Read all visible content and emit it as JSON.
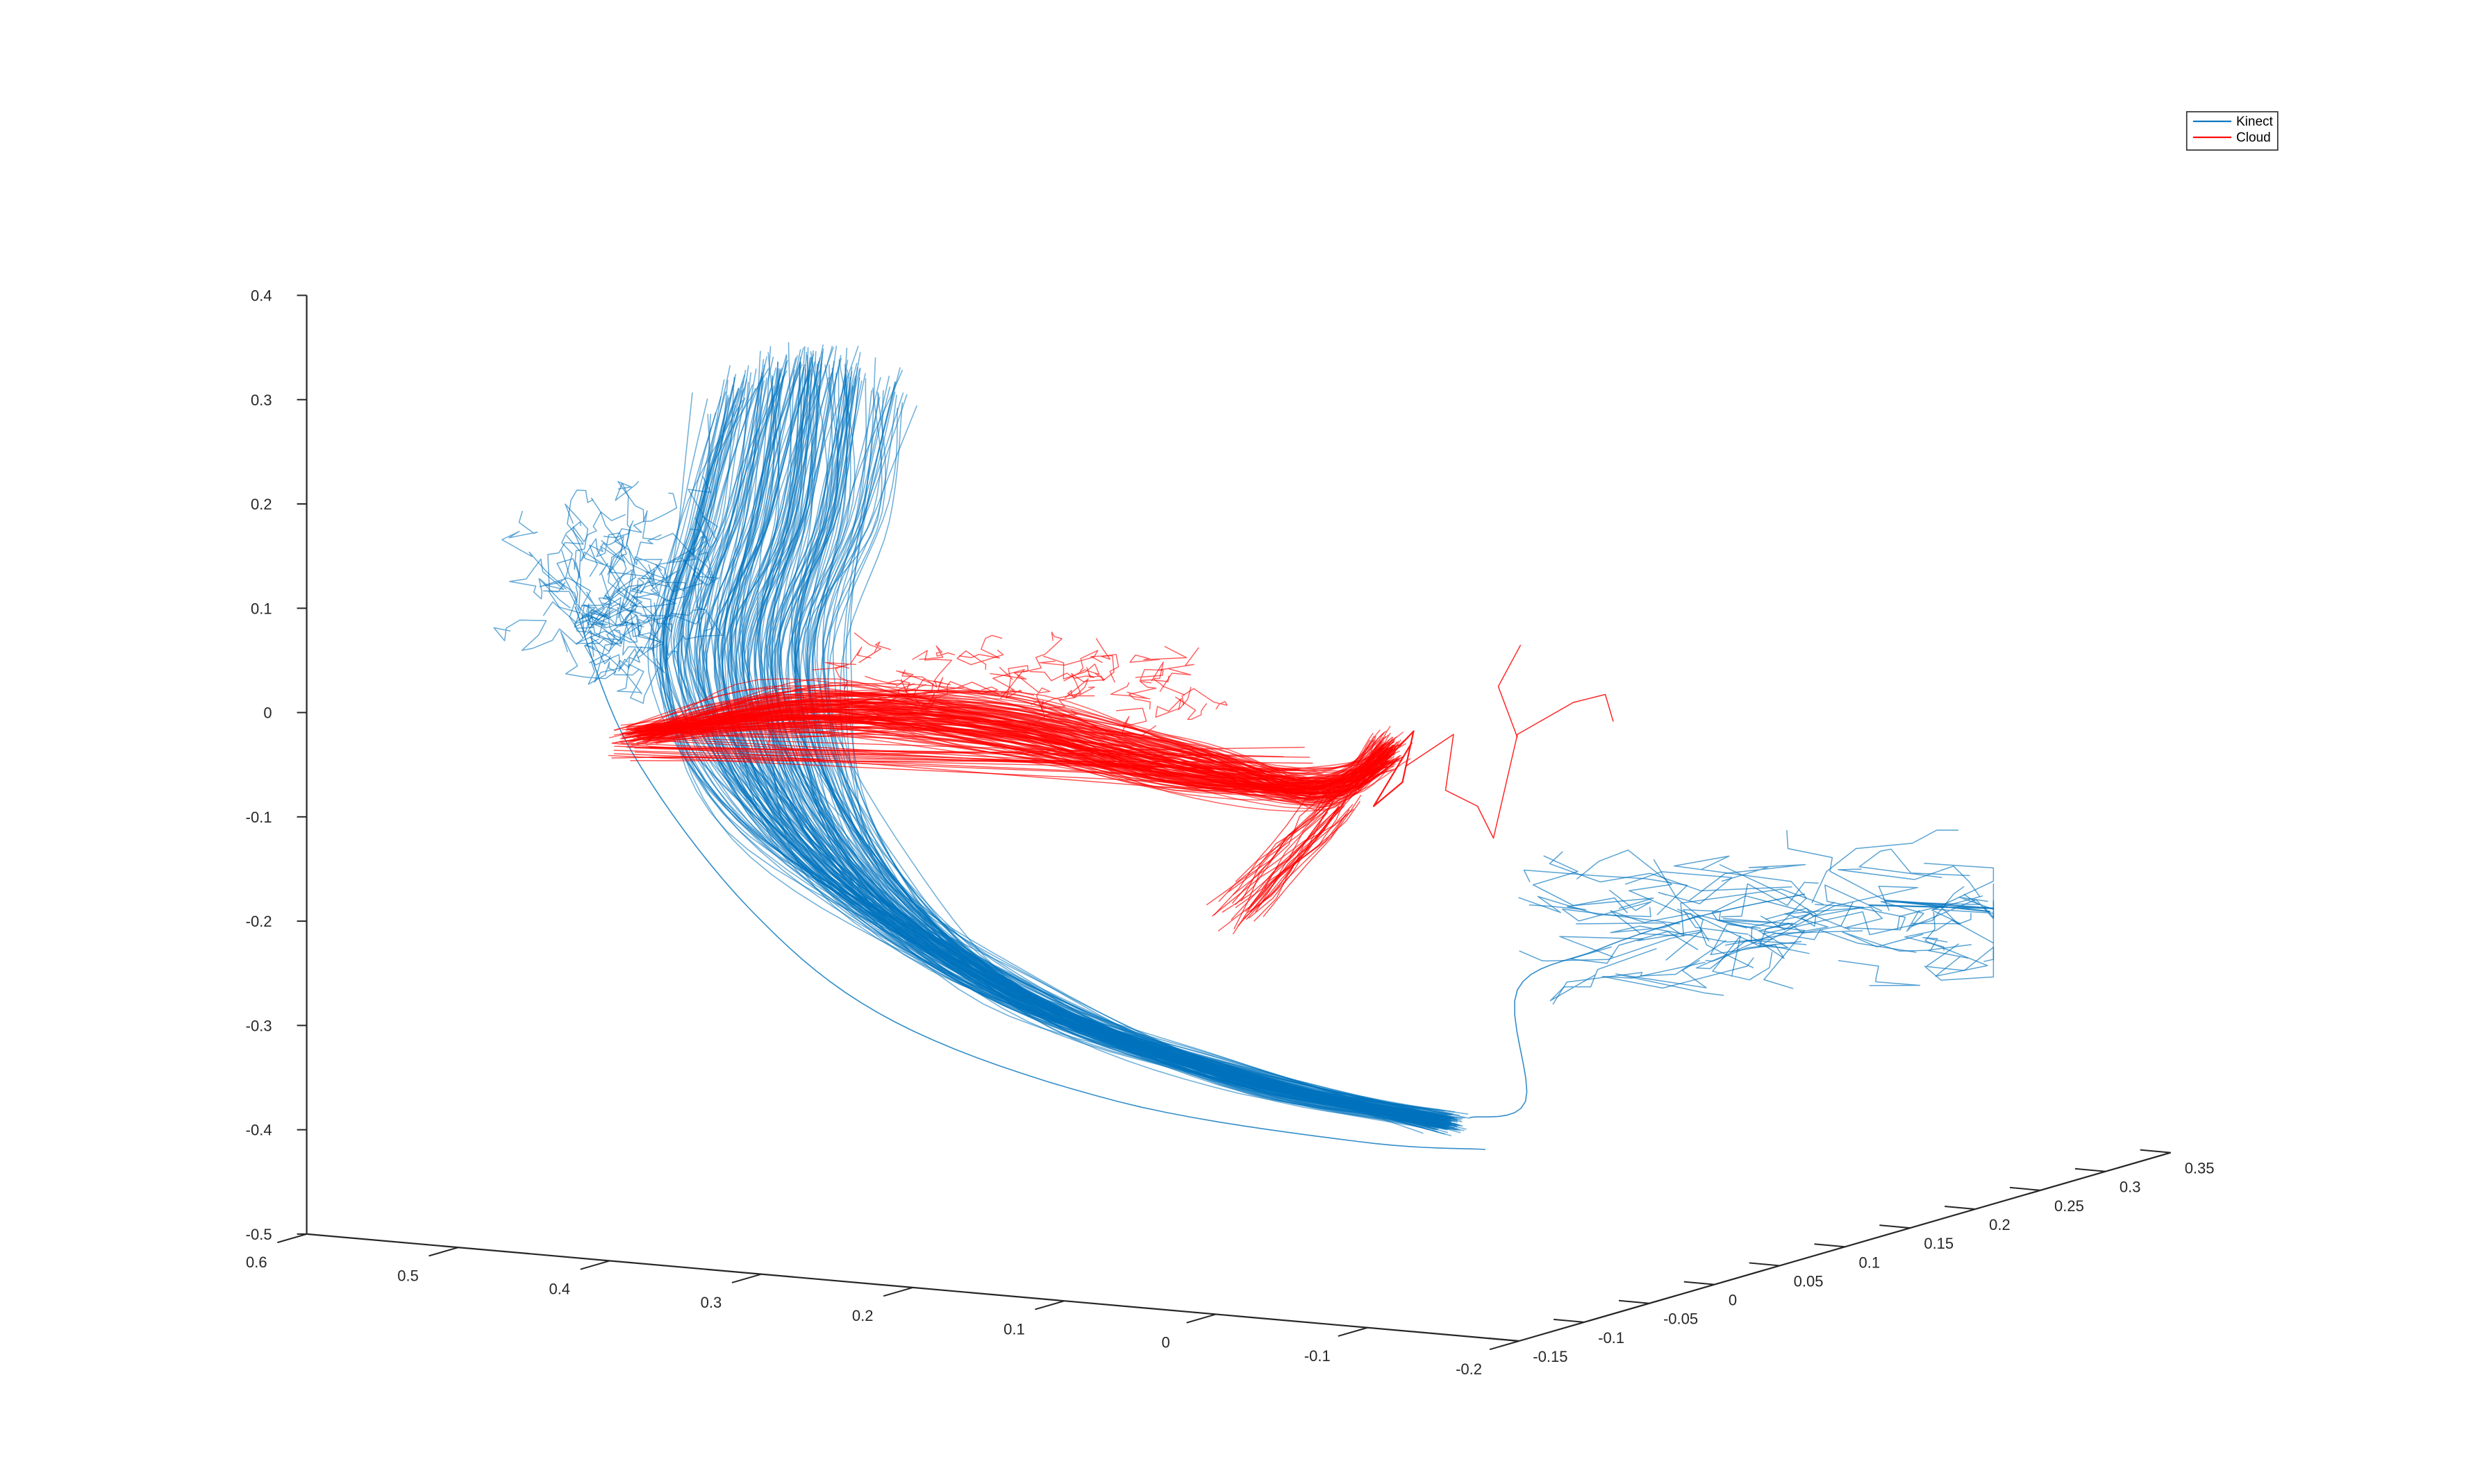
{
  "chart_data": {
    "type": "line",
    "projection": "3d",
    "title": "",
    "xlabel": "",
    "ylabel": "",
    "zlabel": "",
    "grid": false,
    "legend_placement": "top-right",
    "xlim": [
      -0.2,
      0.6
    ],
    "ylim": [
      -0.15,
      0.35
    ],
    "zlim": [
      -0.5,
      0.4
    ],
    "xticks": [
      "0.6",
      "0.5",
      "0.4",
      "0.3",
      "0.2",
      "0.1",
      "0",
      "-0.1",
      "-0.2"
    ],
    "yticks": [
      "-0.15",
      "-0.1",
      "-0.05",
      "0",
      "0.05",
      "0.1",
      "0.15",
      "0.2",
      "0.25",
      "0.3",
      "0.35"
    ],
    "zticks": [
      "0.4",
      "0.3",
      "0.2",
      "0.1",
      "0",
      "-0.1",
      "-0.2",
      "-0.3",
      "-0.4",
      "-0.5"
    ],
    "series": [
      {
        "name": "Kinect",
        "color": "#0072BD",
        "description_points": [
          {
            "x": 0.48,
            "y": -0.1,
            "z": 0.3
          },
          {
            "x": 0.5,
            "y": -0.12,
            "z": 0.2
          },
          {
            "x": 0.52,
            "y": -0.13,
            "z": 0.08
          },
          {
            "x": 0.48,
            "y": -0.12,
            "z": -0.05
          },
          {
            "x": 0.38,
            "y": -0.1,
            "z": -0.2
          },
          {
            "x": 0.25,
            "y": -0.07,
            "z": -0.32
          },
          {
            "x": 0.1,
            "y": -0.04,
            "z": -0.4
          },
          {
            "x": 0.0,
            "y": -0.02,
            "z": -0.42
          },
          {
            "x": -0.05,
            "y": 0.02,
            "z": -0.3
          },
          {
            "x": -0.1,
            "y": 0.08,
            "z": -0.2
          },
          {
            "x": -0.12,
            "y": 0.15,
            "z": -0.18
          }
        ]
      },
      {
        "name": "Cloud",
        "color": "#FF0000",
        "description_points": [
          {
            "x": 0.45,
            "y": -0.12,
            "z": -0.02
          },
          {
            "x": 0.35,
            "y": -0.1,
            "z": 0.0
          },
          {
            "x": 0.2,
            "y": -0.07,
            "z": -0.05
          },
          {
            "x": 0.12,
            "y": -0.05,
            "z": -0.1
          },
          {
            "x": 0.1,
            "y": -0.05,
            "z": -0.18
          },
          {
            "x": 0.08,
            "y": -0.03,
            "z": -0.05
          },
          {
            "x": 0.02,
            "y": 0.0,
            "z": 0.02
          }
        ]
      }
    ]
  }
}
